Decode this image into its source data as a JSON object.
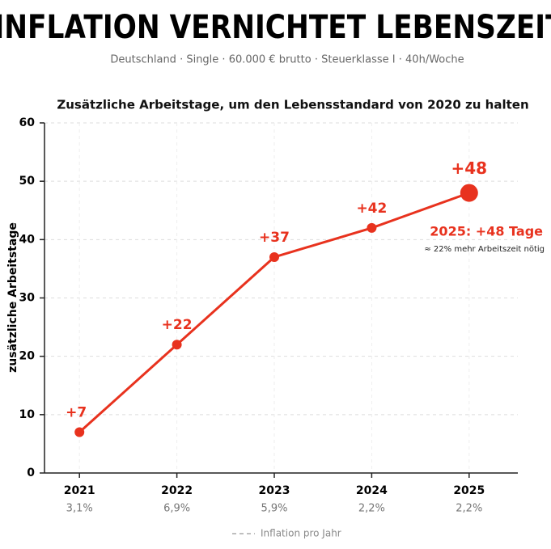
{
  "chart_data": {
    "type": "line",
    "title": "INFLATION VERNICHTET LEBENSZEIT",
    "subtitle": "Deutschland · Single · 60.000 € brutto · Steuerklasse I · 40h/Woche",
    "chart_title": "Zusätzliche Arbeitstage, um den Lebensstandard von 2020 zu halten",
    "y_label": "zusätzliche Arbeitstage",
    "categories": [
      "2021",
      "2022",
      "2023",
      "2024",
      "2025"
    ],
    "inflation": {
      "name": "Inflation pro Jahr",
      "labels": [
        "3,1%",
        "6,9%",
        "5,9%",
        "2,2%",
        "2,2%"
      ]
    },
    "series": [
      {
        "name": "zusätzliche Arbeitstage",
        "color": "#e8321e",
        "values": [
          7,
          22,
          37,
          42,
          48
        ],
        "value_labels": [
          "+7",
          "+22",
          "+37",
          "+42",
          "+48"
        ]
      }
    ],
    "annotation": {
      "title": "2025: +48 Tage",
      "text": "≈ 22% mehr Arbeitszeit nötig"
    },
    "ylim": [
      0,
      60
    ],
    "yticks": [
      0,
      10,
      20,
      30,
      40,
      50,
      60
    ],
    "grid": true
  }
}
